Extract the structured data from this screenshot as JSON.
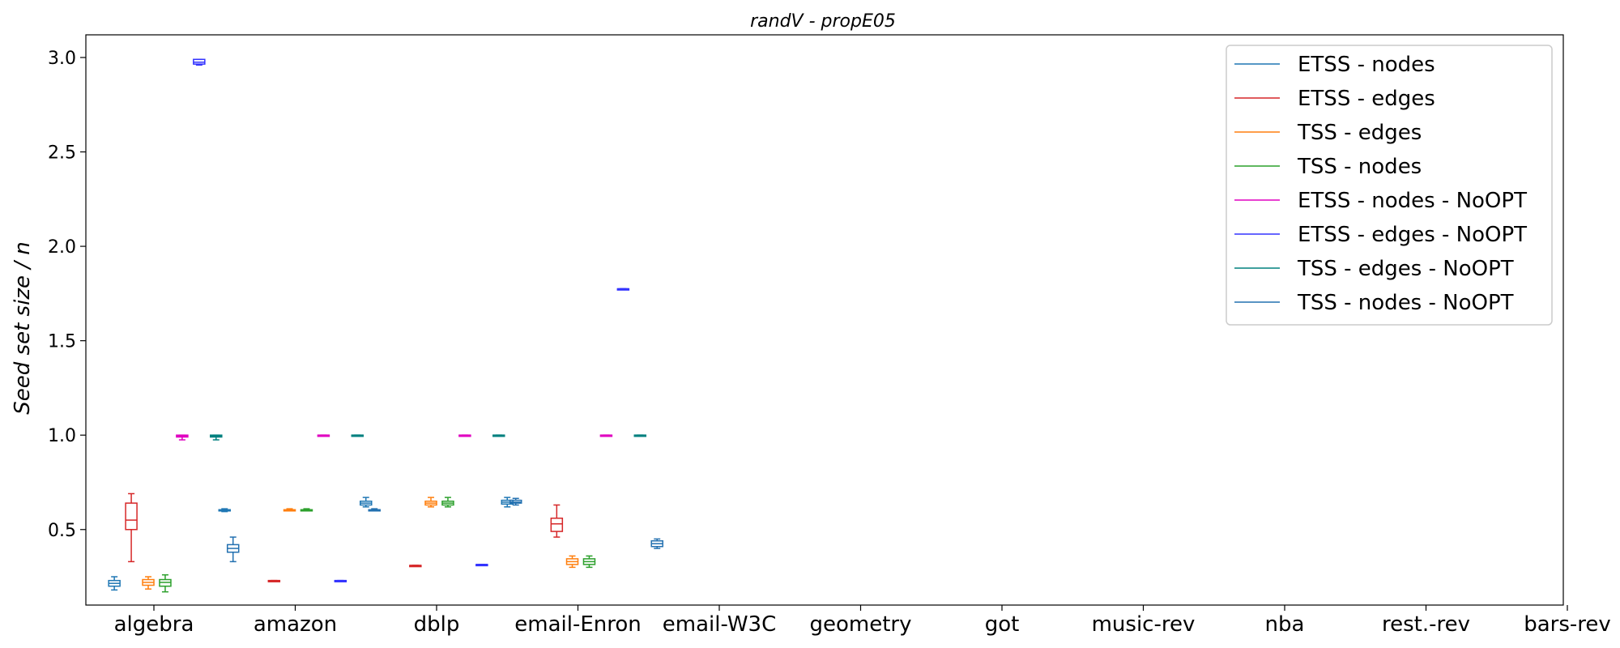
{
  "chart_data": {
    "type": "box",
    "title": "randV - propE05",
    "xlabel": "",
    "ylabel": "Seed set size / n",
    "ylim": [
      0.1,
      3.12
    ],
    "yticks": [
      "0.5",
      "1.0",
      "1.5",
      "2.0",
      "2.5",
      "3.0"
    ],
    "grid": false,
    "legend_position": "top-right",
    "categories": [
      "algebra",
      "amazon",
      "dblp",
      "email-Enron",
      "email-W3C",
      "geometry",
      "got",
      "music-rev",
      "nba",
      "rest.-rev",
      "bars-rev"
    ],
    "series": [
      {
        "name": "ETSS - nodes",
        "color": "#1f77b4",
        "boxes": [
          {
            "category": 0,
            "offset": -0.28,
            "whislo": 0.18,
            "q1": 0.2,
            "med": 0.215,
            "q3": 0.23,
            "whishi": 0.25
          },
          {
            "category": 0.5,
            "offset": 0.0,
            "whislo": 0.595,
            "q1": 0.6,
            "med": 0.6,
            "q3": 0.605,
            "whishi": 0.61
          },
          {
            "category": 1.5,
            "offset": 0.0,
            "whislo": 0.62,
            "q1": 0.63,
            "med": 0.64,
            "q3": 0.65,
            "whishi": 0.67
          },
          {
            "category": 2.5,
            "offset": 0.0,
            "whislo": 0.62,
            "q1": 0.635,
            "med": 0.645,
            "q3": 0.655,
            "whishi": 0.67
          }
        ]
      },
      {
        "name": "ETSS - edges",
        "color": "#d62728",
        "boxes": [
          {
            "category": 0,
            "offset": -0.16,
            "whislo": 0.33,
            "q1": 0.5,
            "med": 0.55,
            "q3": 0.64,
            "whishi": 0.69
          },
          {
            "category": 0.5,
            "offset": 0.35,
            "whislo": 0.23,
            "q1": 0.23,
            "med": 0.23,
            "q3": 0.23,
            "whishi": 0.23
          },
          {
            "category": 1.5,
            "offset": 0.35,
            "whislo": 0.31,
            "q1": 0.31,
            "med": 0.31,
            "q3": 0.31,
            "whishi": 0.31
          },
          {
            "category": 2.5,
            "offset": 0.35,
            "whislo": 0.46,
            "q1": 0.49,
            "med": 0.53,
            "q3": 0.56,
            "whishi": 0.63
          }
        ]
      },
      {
        "name": "TSS - edges",
        "color": "#ff7f0e",
        "boxes": [
          {
            "category": 0,
            "offset": -0.04,
            "whislo": 0.185,
            "q1": 0.205,
            "med": 0.22,
            "q3": 0.235,
            "whishi": 0.25
          },
          {
            "category": 1,
            "offset": -0.04,
            "whislo": 0.6,
            "q1": 0.6,
            "med": 0.6,
            "q3": 0.605,
            "whishi": 0.61
          },
          {
            "category": 2,
            "offset": -0.04,
            "whislo": 0.62,
            "q1": 0.63,
            "med": 0.64,
            "q3": 0.65,
            "whishi": 0.67
          },
          {
            "category": 3,
            "offset": -0.04,
            "whislo": 0.3,
            "q1": 0.315,
            "med": 0.33,
            "q3": 0.345,
            "whishi": 0.36
          }
        ]
      },
      {
        "name": "TSS - nodes",
        "color": "#2ca02c",
        "boxes": [
          {
            "category": 0,
            "offset": 0.08,
            "whislo": 0.17,
            "q1": 0.2,
            "med": 0.22,
            "q3": 0.235,
            "whishi": 0.26
          },
          {
            "category": 1,
            "offset": 0.08,
            "whislo": 0.6,
            "q1": 0.6,
            "med": 0.6,
            "q3": 0.605,
            "whishi": 0.61
          },
          {
            "category": 2,
            "offset": 0.08,
            "whislo": 0.62,
            "q1": 0.63,
            "med": 0.64,
            "q3": 0.65,
            "whishi": 0.67
          },
          {
            "category": 3,
            "offset": 0.08,
            "whislo": 0.3,
            "q1": 0.315,
            "med": 0.33,
            "q3": 0.345,
            "whishi": 0.36
          }
        ]
      },
      {
        "name": "ETSS - nodes - NoOPT",
        "color": "#e000c0",
        "boxes": [
          {
            "category": 0,
            "offset": 0.2,
            "whislo": 0.975,
            "q1": 0.99,
            "med": 0.995,
            "q3": 1.0,
            "whishi": 1.0
          },
          {
            "category": 1,
            "offset": 0.2,
            "whislo": 1.0,
            "q1": 1.0,
            "med": 1.0,
            "q3": 1.0,
            "whishi": 1.0
          },
          {
            "category": 2,
            "offset": 0.2,
            "whislo": 1.0,
            "q1": 1.0,
            "med": 1.0,
            "q3": 1.0,
            "whishi": 1.0
          },
          {
            "category": 3,
            "offset": 0.2,
            "whislo": 1.0,
            "q1": 1.0,
            "med": 1.0,
            "q3": 1.0,
            "whishi": 1.0
          }
        ]
      },
      {
        "name": "ETSS - edges - NoOPT",
        "color": "#3333ff",
        "boxes": [
          {
            "category": 0,
            "offset": 0.32,
            "whislo": 2.96,
            "q1": 2.965,
            "med": 2.975,
            "q3": 2.99,
            "whishi": 2.99
          },
          {
            "category": 1,
            "offset": 0.32,
            "whislo": 0.23,
            "q1": 0.23,
            "med": 0.23,
            "q3": 0.23,
            "whishi": 0.23
          },
          {
            "category": 2,
            "offset": 0.32,
            "whislo": 0.315,
            "q1": 0.315,
            "med": 0.315,
            "q3": 0.315,
            "whishi": 0.315
          },
          {
            "category": 3,
            "offset": 0.32,
            "whislo": 1.775,
            "q1": 1.775,
            "med": 1.775,
            "q3": 1.775,
            "whishi": 1.775
          }
        ]
      },
      {
        "name": "TSS - edges - NoOPT",
        "color": "#00807f",
        "boxes": [
          {
            "category": 0,
            "offset": 0.44,
            "whislo": 0.975,
            "q1": 0.99,
            "med": 0.995,
            "q3": 1.0,
            "whishi": 1.0
          },
          {
            "category": 1,
            "offset": 0.44,
            "whislo": 1.0,
            "q1": 1.0,
            "med": 1.0,
            "q3": 1.0,
            "whishi": 1.0
          },
          {
            "category": 2,
            "offset": 0.44,
            "whislo": 1.0,
            "q1": 1.0,
            "med": 1.0,
            "q3": 1.0,
            "whishi": 1.0
          },
          {
            "category": 3,
            "offset": 0.44,
            "whislo": 1.0,
            "q1": 1.0,
            "med": 1.0,
            "q3": 1.0,
            "whishi": 1.0
          }
        ]
      },
      {
        "name": "TSS - nodes - NoOPT",
        "color": "#2270b0",
        "boxes": [
          {
            "category": 0,
            "offset": 0.56,
            "whislo": 0.33,
            "q1": 0.38,
            "med": 0.4,
            "q3": 0.42,
            "whishi": 0.46
          },
          {
            "category": 1,
            "offset": 0.56,
            "whislo": 0.6,
            "q1": 0.6,
            "med": 0.6,
            "q3": 0.605,
            "whishi": 0.61
          },
          {
            "category": 2,
            "offset": 0.56,
            "whislo": 0.63,
            "q1": 0.64,
            "med": 0.645,
            "q3": 0.655,
            "whishi": 0.665
          },
          {
            "category": 3,
            "offset": 0.56,
            "whislo": 0.4,
            "q1": 0.41,
            "med": 0.425,
            "q3": 0.44,
            "whishi": 0.45
          }
        ]
      }
    ]
  }
}
